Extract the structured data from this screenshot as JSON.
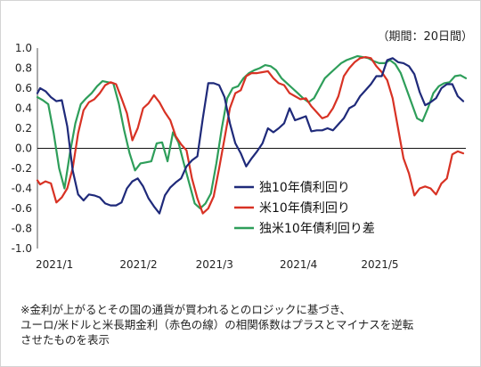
{
  "period_note": "（期間：20日間）",
  "footnote": {
    "line1": "※金利が上がるとその国の通貨が買われるとのロジックに基づき、",
    "line2": "ユーロ/米ドルと米長期金利（赤色の線）の相関係数はプラスとマイナスを逆転",
    "line3": "させたものを表示"
  },
  "chart_data": {
    "type": "line",
    "title": "",
    "xlabel": "",
    "ylabel": "",
    "ylim": [
      -1.0,
      1.0
    ],
    "y_ticks": [
      "1.0",
      "0.8",
      "0.6",
      "0.4",
      "0.2",
      "0.0",
      "-0.2",
      "-0.4",
      "-0.6",
      "-0.8",
      "-1.0"
    ],
    "x_range": [
      "2021/1/1",
      "2021/6/8"
    ],
    "x_ticks": [
      {
        "label": "2021/1",
        "date": "2021/1/1"
      },
      {
        "label": "2021/2",
        "date": "2021/2/1"
      },
      {
        "label": "2021/3",
        "date": "2021/3/1"
      },
      {
        "label": "2021/4",
        "date": "2021/4/1"
      },
      {
        "label": "2021/5",
        "date": "2021/5/1"
      }
    ],
    "grid": false,
    "zero_line": true,
    "legend_position": "center-right",
    "series": [
      {
        "name": "独10年債利回り",
        "color": "#1f2a7a",
        "points": [
          [
            "2021/1/1",
            0.55
          ],
          [
            "2021/1/2",
            0.6
          ],
          [
            "2021/1/4",
            0.57
          ],
          [
            "2021/1/6",
            0.51
          ],
          [
            "2021/1/8",
            0.47
          ],
          [
            "2021/1/10",
            0.48
          ],
          [
            "2021/1/12",
            0.22
          ],
          [
            "2021/1/14",
            -0.22
          ],
          [
            "2021/1/16",
            -0.46
          ],
          [
            "2021/1/18",
            -0.52
          ],
          [
            "2021/1/20",
            -0.46
          ],
          [
            "2021/1/22",
            -0.47
          ],
          [
            "2021/1/24",
            -0.49
          ],
          [
            "2021/1/26",
            -0.55
          ],
          [
            "2021/1/28",
            -0.57
          ],
          [
            "2021/1/30",
            -0.57
          ],
          [
            "2021/2/1",
            -0.54
          ],
          [
            "2021/2/3",
            -0.4
          ],
          [
            "2021/2/5",
            -0.33
          ],
          [
            "2021/2/7",
            -0.3
          ],
          [
            "2021/2/9",
            -0.38
          ],
          [
            "2021/2/11",
            -0.5
          ],
          [
            "2021/2/13",
            -0.58
          ],
          [
            "2021/2/15",
            -0.65
          ],
          [
            "2021/2/17",
            -0.47
          ],
          [
            "2021/2/19",
            -0.39
          ],
          [
            "2021/2/21",
            -0.34
          ],
          [
            "2021/2/23",
            -0.3
          ],
          [
            "2021/2/25",
            -0.18
          ],
          [
            "2021/2/27",
            -0.12
          ],
          [
            "2021/3/1",
            -0.08
          ],
          [
            "2021/3/3",
            0.3
          ],
          [
            "2021/3/5",
            0.65
          ],
          [
            "2021/3/7",
            0.65
          ],
          [
            "2021/3/9",
            0.63
          ],
          [
            "2021/3/11",
            0.51
          ],
          [
            "2021/3/13",
            0.25
          ],
          [
            "2021/3/15",
            0.05
          ],
          [
            "2021/3/17",
            -0.05
          ],
          [
            "2021/3/19",
            -0.18
          ],
          [
            "2021/3/21",
            -0.1
          ],
          [
            "2021/3/23",
            -0.03
          ],
          [
            "2021/3/25",
            0.05
          ],
          [
            "2021/3/27",
            0.2
          ],
          [
            "2021/3/29",
            0.16
          ],
          [
            "2021/3/31",
            0.2
          ],
          [
            "2021/4/2",
            0.25
          ],
          [
            "2021/4/4",
            0.4
          ],
          [
            "2021/4/6",
            0.28
          ],
          [
            "2021/4/8",
            0.3
          ],
          [
            "2021/4/10",
            0.32
          ],
          [
            "2021/4/12",
            0.17
          ],
          [
            "2021/4/14",
            0.18
          ],
          [
            "2021/4/16",
            0.18
          ],
          [
            "2021/4/18",
            0.2
          ],
          [
            "2021/4/20",
            0.18
          ],
          [
            "2021/4/22",
            0.24
          ],
          [
            "2021/4/24",
            0.3
          ],
          [
            "2021/4/26",
            0.4
          ],
          [
            "2021/4/28",
            0.43
          ],
          [
            "2021/4/30",
            0.52
          ],
          [
            "2021/5/2",
            0.58
          ],
          [
            "2021/5/4",
            0.64
          ],
          [
            "2021/5/6",
            0.72
          ],
          [
            "2021/5/8",
            0.72
          ],
          [
            "2021/5/10",
            0.88
          ],
          [
            "2021/5/12",
            0.9
          ],
          [
            "2021/5/14",
            0.86
          ],
          [
            "2021/5/16",
            0.85
          ],
          [
            "2021/5/18",
            0.82
          ],
          [
            "2021/5/20",
            0.74
          ],
          [
            "2021/5/22",
            0.56
          ],
          [
            "2021/5/24",
            0.43
          ],
          [
            "2021/5/26",
            0.46
          ],
          [
            "2021/5/28",
            0.5
          ],
          [
            "2021/5/30",
            0.6
          ],
          [
            "2021/6/1",
            0.64
          ],
          [
            "2021/6/3",
            0.64
          ],
          [
            "2021/6/5",
            0.52
          ],
          [
            "2021/6/7",
            0.47
          ]
        ]
      },
      {
        "name": "米10年債利回り",
        "color": "#d83224",
        "points": [
          [
            "2021/1/1",
            -0.32
          ],
          [
            "2021/1/2",
            -0.36
          ],
          [
            "2021/1/4",
            -0.33
          ],
          [
            "2021/1/6",
            -0.35
          ],
          [
            "2021/1/8",
            -0.54
          ],
          [
            "2021/1/10",
            -0.49
          ],
          [
            "2021/1/12",
            -0.4
          ],
          [
            "2021/1/14",
            -0.2
          ],
          [
            "2021/1/16",
            0.15
          ],
          [
            "2021/1/18",
            0.38
          ],
          [
            "2021/1/20",
            0.46
          ],
          [
            "2021/1/22",
            0.49
          ],
          [
            "2021/1/24",
            0.55
          ],
          [
            "2021/1/26",
            0.63
          ],
          [
            "2021/1/28",
            0.66
          ],
          [
            "2021/1/30",
            0.64
          ],
          [
            "2021/2/1",
            0.5
          ],
          [
            "2021/2/3",
            0.35
          ],
          [
            "2021/2/5",
            0.08
          ],
          [
            "2021/2/7",
            0.2
          ],
          [
            "2021/2/9",
            0.4
          ],
          [
            "2021/2/11",
            0.45
          ],
          [
            "2021/2/13",
            0.53
          ],
          [
            "2021/2/15",
            0.46
          ],
          [
            "2021/2/17",
            0.36
          ],
          [
            "2021/2/19",
            0.28
          ],
          [
            "2021/2/21",
            0.12
          ],
          [
            "2021/2/23",
            0.04
          ],
          [
            "2021/2/25",
            -0.02
          ],
          [
            "2021/2/27",
            -0.3
          ],
          [
            "2021/3/1",
            -0.5
          ],
          [
            "2021/3/3",
            -0.65
          ],
          [
            "2021/3/5",
            -0.6
          ],
          [
            "2021/3/7",
            -0.48
          ],
          [
            "2021/3/9",
            -0.2
          ],
          [
            "2021/3/11",
            0.1
          ],
          [
            "2021/3/13",
            0.4
          ],
          [
            "2021/3/15",
            0.55
          ],
          [
            "2021/3/17",
            0.58
          ],
          [
            "2021/3/19",
            0.72
          ],
          [
            "2021/3/21",
            0.75
          ],
          [
            "2021/3/23",
            0.75
          ],
          [
            "2021/3/25",
            0.76
          ],
          [
            "2021/3/27",
            0.77
          ],
          [
            "2021/3/29",
            0.7
          ],
          [
            "2021/3/31",
            0.65
          ],
          [
            "2021/4/2",
            0.63
          ],
          [
            "2021/4/4",
            0.55
          ],
          [
            "2021/4/6",
            0.52
          ],
          [
            "2021/4/8",
            0.49
          ],
          [
            "2021/4/10",
            0.5
          ],
          [
            "2021/4/12",
            0.42
          ],
          [
            "2021/4/14",
            0.36
          ],
          [
            "2021/4/16",
            0.3
          ],
          [
            "2021/4/18",
            0.32
          ],
          [
            "2021/4/20",
            0.4
          ],
          [
            "2021/4/22",
            0.52
          ],
          [
            "2021/4/24",
            0.72
          ],
          [
            "2021/4/26",
            0.8
          ],
          [
            "2021/4/28",
            0.86
          ],
          [
            "2021/4/30",
            0.9
          ],
          [
            "2021/5/2",
            0.91
          ],
          [
            "2021/5/4",
            0.9
          ],
          [
            "2021/5/6",
            0.82
          ],
          [
            "2021/5/8",
            0.76
          ],
          [
            "2021/5/10",
            0.68
          ],
          [
            "2021/5/12",
            0.5
          ],
          [
            "2021/5/14",
            0.2
          ],
          [
            "2021/5/16",
            -0.1
          ],
          [
            "2021/5/18",
            -0.25
          ],
          [
            "2021/5/20",
            -0.47
          ],
          [
            "2021/5/22",
            -0.4
          ],
          [
            "2021/5/24",
            -0.38
          ],
          [
            "2021/5/26",
            -0.4
          ],
          [
            "2021/5/28",
            -0.46
          ],
          [
            "2021/5/30",
            -0.35
          ],
          [
            "2021/6/1",
            -0.3
          ],
          [
            "2021/6/3",
            -0.06
          ],
          [
            "2021/6/5",
            -0.03
          ],
          [
            "2021/6/7",
            -0.05
          ]
        ]
      },
      {
        "name": "独米10年債利回り差",
        "color": "#2e9e5a",
        "points": [
          [
            "2021/1/1",
            0.51
          ],
          [
            "2021/1/3",
            0.48
          ],
          [
            "2021/1/5",
            0.44
          ],
          [
            "2021/1/7",
            0.15
          ],
          [
            "2021/1/9",
            -0.2
          ],
          [
            "2021/1/11",
            -0.4
          ],
          [
            "2021/1/13",
            -0.05
          ],
          [
            "2021/1/15",
            0.25
          ],
          [
            "2021/1/17",
            0.44
          ],
          [
            "2021/1/19",
            0.5
          ],
          [
            "2021/1/21",
            0.55
          ],
          [
            "2021/1/23",
            0.62
          ],
          [
            "2021/1/25",
            0.67
          ],
          [
            "2021/1/27",
            0.66
          ],
          [
            "2021/1/29",
            0.65
          ],
          [
            "2021/1/31",
            0.45
          ],
          [
            "2021/2/2",
            0.18
          ],
          [
            "2021/2/4",
            -0.05
          ],
          [
            "2021/2/6",
            -0.22
          ],
          [
            "2021/2/8",
            -0.15
          ],
          [
            "2021/2/10",
            -0.14
          ],
          [
            "2021/2/12",
            -0.13
          ],
          [
            "2021/2/14",
            0.05
          ],
          [
            "2021/2/16",
            0.06
          ],
          [
            "2021/2/18",
            -0.13
          ],
          [
            "2021/2/20",
            0.16
          ],
          [
            "2021/2/22",
            0.06
          ],
          [
            "2021/2/24",
            -0.15
          ],
          [
            "2021/2/26",
            -0.35
          ],
          [
            "2021/2/28",
            -0.55
          ],
          [
            "2021/3/2",
            -0.6
          ],
          [
            "2021/3/4",
            -0.55
          ],
          [
            "2021/3/6",
            -0.45
          ],
          [
            "2021/3/8",
            -0.15
          ],
          [
            "2021/3/10",
            0.2
          ],
          [
            "2021/3/12",
            0.5
          ],
          [
            "2021/3/14",
            0.6
          ],
          [
            "2021/3/16",
            0.62
          ],
          [
            "2021/3/18",
            0.7
          ],
          [
            "2021/3/20",
            0.75
          ],
          [
            "2021/3/22",
            0.78
          ],
          [
            "2021/3/24",
            0.8
          ],
          [
            "2021/3/26",
            0.83
          ],
          [
            "2021/3/28",
            0.82
          ],
          [
            "2021/3/30",
            0.78
          ],
          [
            "2021/4/1",
            0.7
          ],
          [
            "2021/4/3",
            0.65
          ],
          [
            "2021/4/5",
            0.6
          ],
          [
            "2021/4/7",
            0.55
          ],
          [
            "2021/4/9",
            0.5
          ],
          [
            "2021/4/11",
            0.46
          ],
          [
            "2021/4/13",
            0.5
          ],
          [
            "2021/4/15",
            0.6
          ],
          [
            "2021/4/17",
            0.7
          ],
          [
            "2021/4/19",
            0.75
          ],
          [
            "2021/4/21",
            0.8
          ],
          [
            "2021/4/23",
            0.85
          ],
          [
            "2021/4/25",
            0.88
          ],
          [
            "2021/4/27",
            0.9
          ],
          [
            "2021/4/29",
            0.92
          ],
          [
            "2021/5/1",
            0.91
          ],
          [
            "2021/5/3",
            0.9
          ],
          [
            "2021/5/5",
            0.87
          ],
          [
            "2021/5/7",
            0.85
          ],
          [
            "2021/5/9",
            0.85
          ],
          [
            "2021/5/11",
            0.88
          ],
          [
            "2021/5/13",
            0.84
          ],
          [
            "2021/5/15",
            0.75
          ],
          [
            "2021/5/17",
            0.6
          ],
          [
            "2021/5/19",
            0.45
          ],
          [
            "2021/5/21",
            0.3
          ],
          [
            "2021/5/23",
            0.27
          ],
          [
            "2021/5/25",
            0.4
          ],
          [
            "2021/5/27",
            0.55
          ],
          [
            "2021/5/29",
            0.62
          ],
          [
            "2021/5/31",
            0.65
          ],
          [
            "2021/6/2",
            0.66
          ],
          [
            "2021/6/4",
            0.72
          ],
          [
            "2021/6/6",
            0.73
          ],
          [
            "2021/6/8",
            0.7
          ]
        ]
      }
    ]
  }
}
